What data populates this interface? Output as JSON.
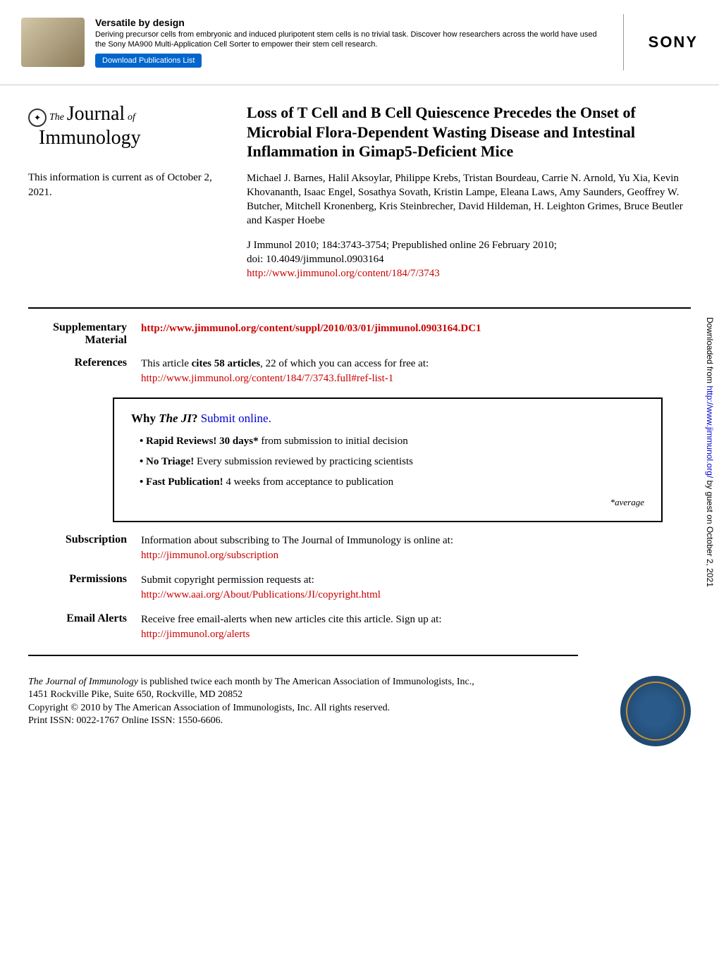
{
  "banner": {
    "title": "Versatile by design",
    "desc": "Deriving precursor cells from embryonic and induced pluripotent stem cells is no trivial task. Discover how researchers across the world have used the Sony MA900 Multi-Application Cell Sorter to empower their stem cell research.",
    "button": "Download Publications List",
    "brand": "SONY"
  },
  "journal": {
    "prefix": "The",
    "word1": "Journal",
    "suffix": "of",
    "word2": "Immunology"
  },
  "currentInfo": "This information is current as of October 2, 2021.",
  "article": {
    "title": "Loss of T Cell and B Cell Quiescence Precedes the Onset of Microbial Flora-Dependent Wasting Disease and Intestinal Inflammation in Gimap5-Deficient Mice",
    "authors": "Michael J. Barnes, Halil Aksoylar, Philippe Krebs, Tristan Bourdeau, Carrie N. Arnold, Yu Xia, Kevin Khovananth, Isaac Engel, Sosathya Sovath, Kristin Lampe, Eleana Laws, Amy Saunders, Geoffrey W. Butcher, Mitchell Kronenberg, Kris Steinbrecher, David Hildeman, H. Leighton Grimes, Bruce Beutler and Kasper Hoebe",
    "citation_line1": "J Immunol 2010; 184:3743-3754; Prepublished online 26 February 2010;",
    "doi": "doi: 10.4049/jimmunol.0903164",
    "url": "http://www.jimmunol.org/content/184/7/3743"
  },
  "meta": {
    "supplementary": {
      "label": "Supplementary Material",
      "url": "http://www.jimmunol.org/content/suppl/2010/03/01/jimmunol.0903164.DC1"
    },
    "references": {
      "label": "References",
      "text_before": "This article ",
      "text_bold": "cites 58 articles",
      "text_after": ", 22 of which you can access for free at:",
      "url": "http://www.jimmunol.org/content/184/7/3743.full#ref-list-1"
    },
    "subscription": {
      "label": "Subscription",
      "text": "Information about subscribing to The Journal of Immunology is online at:",
      "url": "http://jimmunol.org/subscription"
    },
    "permissions": {
      "label": "Permissions",
      "text": "Submit copyright permission requests at:",
      "url": "http://www.aai.org/About/Publications/JI/copyright.html"
    },
    "emailAlerts": {
      "label": "Email Alerts",
      "text": "Receive free email-alerts when new articles cite this article. Sign up at:",
      "url": "http://jimmunol.org/alerts"
    }
  },
  "whyBox": {
    "title_prefix": "Why ",
    "title_italic": "The JI",
    "title_q": "? ",
    "submit_link": "Submit online.",
    "items": [
      {
        "bold": "Rapid Reviews! 30 days*",
        "rest": " from submission to initial decision"
      },
      {
        "bold": "No Triage!",
        "rest": " Every submission reviewed by practicing scientists"
      },
      {
        "bold": "Fast Publication!",
        "rest": " 4 weeks from acceptance to publication"
      }
    ],
    "avg": "*average"
  },
  "footer": {
    "line1_italic": "The Journal of Immunology",
    "line1_rest": " is published twice each month by The American Association of Immunologists, Inc.,",
    "line2": "1451 Rockville Pike, Suite 650, Rockville, MD 20852",
    "line3": "Copyright © 2010 by The American Association of Immunologists, Inc. All rights reserved.",
    "line4": "Print ISSN: 0022-1767 Online ISSN: 1550-6606."
  },
  "sidebar": {
    "prefix": "Downloaded from ",
    "url": "http://www.jimmunol.org/",
    "suffix": " by guest on October 2, 2021"
  },
  "colors": {
    "link_red": "#cc0000",
    "link_blue": "#0000cc",
    "text": "#000000",
    "bg": "#ffffff"
  }
}
